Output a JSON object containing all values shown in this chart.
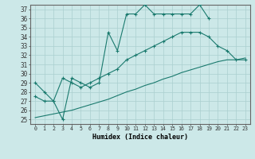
{
  "xlabel": "Humidex (Indice chaleur)",
  "xlim": [
    -0.5,
    23.5
  ],
  "ylim": [
    24.5,
    37.5
  ],
  "xticks": [
    0,
    1,
    2,
    3,
    4,
    5,
    6,
    7,
    8,
    9,
    10,
    11,
    12,
    13,
    14,
    15,
    16,
    17,
    18,
    19,
    20,
    21,
    22,
    23
  ],
  "yticks": [
    25,
    26,
    27,
    28,
    29,
    30,
    31,
    32,
    33,
    34,
    35,
    36,
    37
  ],
  "bg_color": "#cce8e8",
  "line_color": "#1a7a6e",
  "grid_color": "#aacfcf",
  "line1_x": [
    0,
    1,
    2,
    3,
    4,
    5,
    6,
    7,
    8,
    9,
    10,
    11,
    12,
    13,
    14,
    15,
    16,
    17,
    18,
    19
  ],
  "line1_y": [
    29.0,
    28.0,
    27.0,
    25.0,
    29.5,
    29.0,
    28.5,
    29.0,
    34.5,
    32.5,
    36.5,
    36.5,
    37.5,
    36.5,
    36.5,
    36.5,
    36.5,
    36.5,
    37.5,
    36.0
  ],
  "line2_x": [
    0,
    1,
    2,
    3,
    4,
    5,
    6,
    7,
    8,
    9,
    10,
    11,
    12,
    13,
    14,
    15,
    16,
    17,
    18,
    19,
    20,
    21,
    22,
    23
  ],
  "line2_y": [
    27.5,
    27.0,
    27.0,
    29.5,
    29.0,
    28.5,
    29.0,
    29.5,
    30.0,
    30.5,
    31.5,
    32.0,
    32.5,
    33.0,
    33.5,
    34.0,
    34.5,
    34.5,
    34.5,
    34.0,
    33.0,
    32.5,
    31.5,
    31.5
  ],
  "line3_x": [
    0,
    1,
    2,
    3,
    4,
    5,
    6,
    7,
    8,
    9,
    10,
    11,
    12,
    13,
    14,
    15,
    16,
    17,
    18,
    19,
    20,
    21,
    22,
    23
  ],
  "line3_y": [
    25.2,
    25.4,
    25.6,
    25.8,
    26.0,
    26.3,
    26.6,
    26.9,
    27.2,
    27.6,
    28.0,
    28.3,
    28.7,
    29.0,
    29.4,
    29.7,
    30.1,
    30.4,
    30.7,
    31.0,
    31.3,
    31.5,
    31.5,
    31.7
  ]
}
